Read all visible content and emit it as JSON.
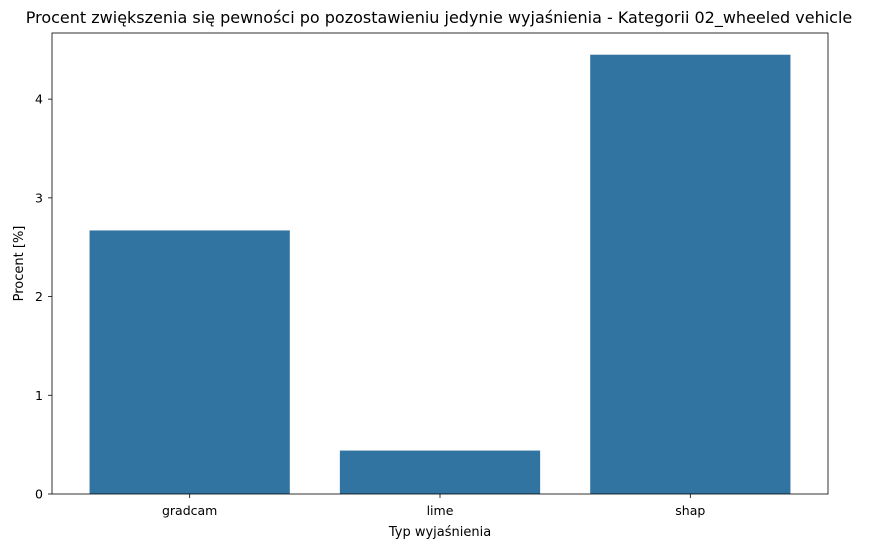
{
  "chart_data": {
    "type": "bar",
    "title": "Procent zwiększenia się pewności po pozostawieniu jedynie wyjaśnienia - Kategorii 02_wheeled vehicle",
    "xlabel": "Typ wyjaśnienia",
    "ylabel": "Procent [%]",
    "categories": [
      "gradcam",
      "lime",
      "shap"
    ],
    "values": [
      2.67,
      0.44,
      4.45
    ],
    "ylim": [
      0,
      4.67
    ],
    "yticks": [
      0,
      1,
      2,
      3,
      4
    ],
    "grid": false,
    "bar_color": "#3274a1"
  }
}
